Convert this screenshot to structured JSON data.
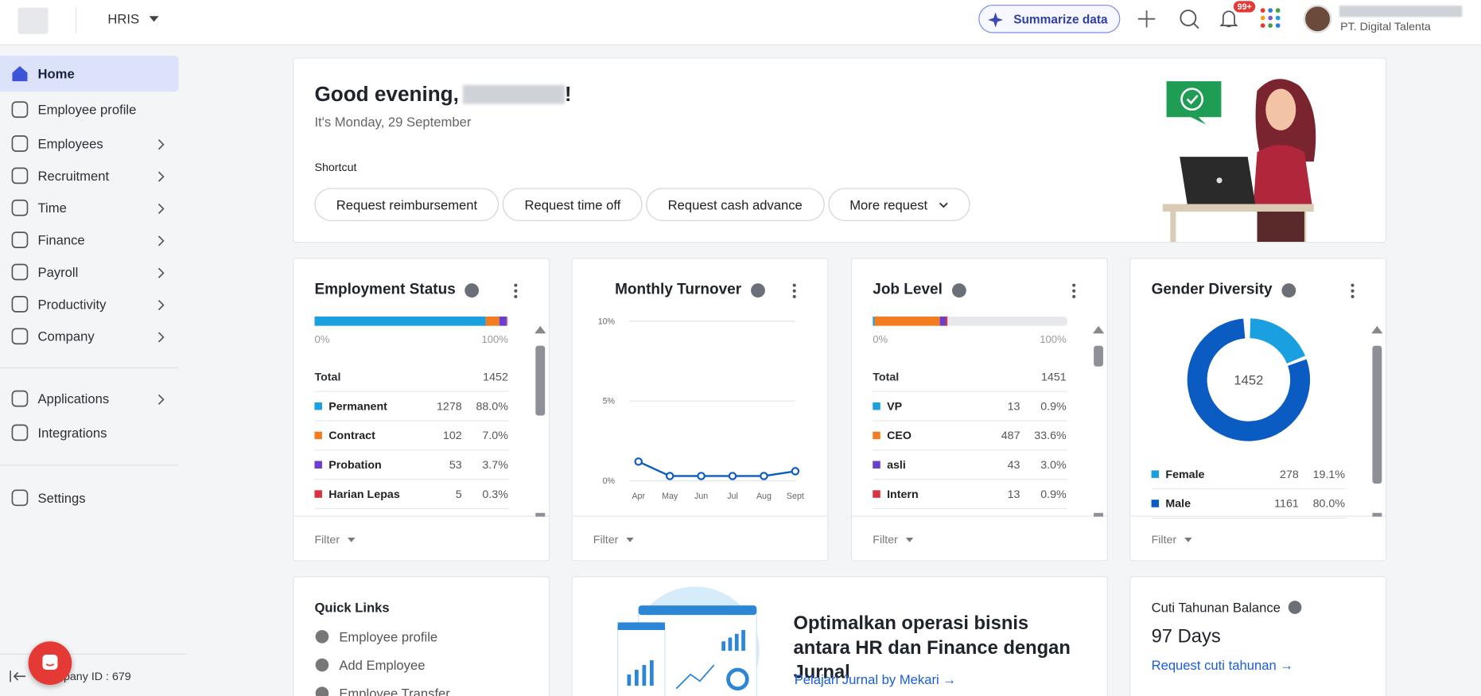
{
  "header": {
    "app": "HRIS",
    "summarize": "Summarize data",
    "notification_badge": "99+",
    "company": "PT. Digital Talenta"
  },
  "sidebar": {
    "sections": [
      [
        {
          "label": "Home",
          "active": true
        },
        {
          "label": "Employee profile"
        },
        {
          "label": "Employees",
          "expandable": true
        },
        {
          "label": "Recruitment",
          "expandable": true
        },
        {
          "label": "Time",
          "expandable": true
        },
        {
          "label": "Finance",
          "expandable": true
        },
        {
          "label": "Payroll",
          "expandable": true
        },
        {
          "label": "Productivity",
          "expandable": true
        },
        {
          "label": "Company",
          "expandable": true
        }
      ],
      [
        {
          "label": "Applications",
          "expandable": true
        },
        {
          "label": "Integrations"
        }
      ],
      [
        {
          "label": "Settings"
        }
      ]
    ],
    "company_id": "Company ID : 679"
  },
  "greeting": {
    "text": "Good evening,",
    "suffix": "!",
    "date": "It's Monday, 29 September",
    "shortcut_label": "Shortcut",
    "shortcuts": [
      "Request reimbursement",
      "Request time off",
      "Request cash advance",
      "More request"
    ]
  },
  "widgets": {
    "employment_status": {
      "title": "Employment Status",
      "scale_min": "0%",
      "scale_max": "100%",
      "total_label": "Total",
      "total": 1452,
      "rows": [
        {
          "name": "Permanent",
          "color": "#1a9fe0",
          "count": 1278,
          "percent": 88.0,
          "percent_label": "88.0%"
        },
        {
          "name": "Contract",
          "color": "#f47c20",
          "count": 102,
          "percent": 7.0,
          "percent_label": "7.0%"
        },
        {
          "name": "Probation",
          "color": "#6a3fd0",
          "count": 53,
          "percent": 3.7,
          "percent_label": "3.7%"
        },
        {
          "name": "Harian Lepas",
          "color": "#d8333f",
          "count": 5,
          "percent": 0.3,
          "percent_label": "0.3%"
        }
      ],
      "filter": "Filter"
    },
    "monthly_turnover": {
      "title": "Monthly Turnover",
      "type": "line",
      "categories": [
        "Apr",
        "May",
        "Jun",
        "Jul",
        "Aug",
        "Sept"
      ],
      "values": [
        1.2,
        0.3,
        0.3,
        0.3,
        0.3,
        0.6
      ],
      "ylim": [
        0,
        10
      ],
      "yticks": [
        {
          "value": 0,
          "label": "0%"
        },
        {
          "value": 5,
          "label": "5%"
        },
        {
          "value": 10,
          "label": "10%"
        }
      ],
      "color": "#0a5cc2",
      "grid": true,
      "filter": "Filter"
    },
    "job_level": {
      "title": "Job Level",
      "scale_min": "0%",
      "scale_max": "100%",
      "total_label": "Total",
      "total": 1451,
      "rows": [
        {
          "name": "VP",
          "color": "#1a9fe0",
          "count": 13,
          "percent": 0.9,
          "percent_label": "0.9%"
        },
        {
          "name": "CEO",
          "color": "#f47c20",
          "count": 487,
          "percent": 33.6,
          "percent_label": "33.6%"
        },
        {
          "name": "asli",
          "color": "#6a3fd0",
          "count": 43,
          "percent": 3.0,
          "percent_label": "3.0%"
        },
        {
          "name": "Intern",
          "color": "#d8333f",
          "count": 13,
          "percent": 0.9,
          "percent_label": "0.9%"
        }
      ],
      "filter": "Filter"
    },
    "gender_diversity": {
      "title": "Gender Diversity",
      "type": "donut",
      "center_total": 1452,
      "rows": [
        {
          "name": "Female",
          "color": "#1a9fe0",
          "count": 278,
          "percent": 19.1,
          "percent_label": "19.1%"
        },
        {
          "name": "Male",
          "color": "#0a5cc2",
          "count": 1161,
          "percent": 80.0,
          "percent_label": "80.0%"
        }
      ],
      "filter": "Filter"
    }
  },
  "quick_links": {
    "title": "Quick Links",
    "items": [
      "Employee profile",
      "Add Employee",
      "Employee Transfer"
    ]
  },
  "promo": {
    "title": "Optimalkan operasi bisnis antara HR dan Finance dengan Jurnal",
    "link": "Pelajari Jurnal by Mekari →"
  },
  "leave_balance": {
    "title": "Cuti Tahunan Balance",
    "value": "97 Days",
    "link": "Request cuti tahunan →"
  }
}
